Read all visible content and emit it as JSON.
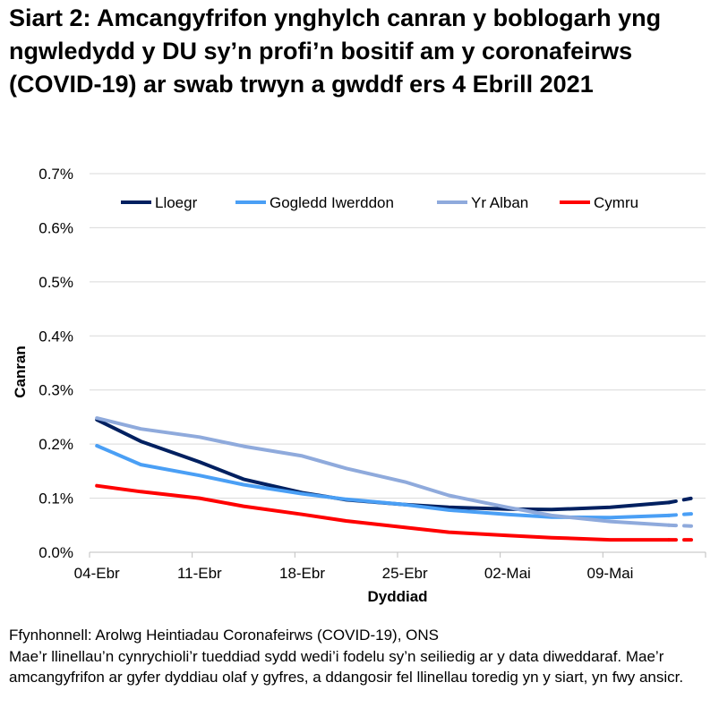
{
  "title": "Siart 2: Amcangyfrifon ynghylch canran y boblogarh yng ngwledydd y DU sy’n profi’n bositif am y coronafeirws (COVID-19) ar swab trwyn a gwddf ers 4 Ebrill 2021",
  "chart_data": {
    "type": "line",
    "title": "Siart 2: Amcangyfrifon ynghylch canran y boblogarh yng ngwledydd y DU sy’n profi’n bositif am y coronafeirws (COVID-19) ar swab trwyn a gwddf ers 4 Ebrill 2021",
    "xlabel": "Dyddiad",
    "ylabel": "Canran",
    "x_range": [
      "04-Ebr",
      "15-Mai"
    ],
    "x_ticks": [
      "04-Ebr",
      "11-Ebr",
      "18-Ebr",
      "25-Ebr",
      "02-Mai",
      "09-Mai"
    ],
    "ylim": [
      0,
      0.7
    ],
    "y_ticks": [
      "0.0%",
      "0.1%",
      "0.2%",
      "0.3%",
      "0.4%",
      "0.5%",
      "0.6%",
      "0.7%"
    ],
    "y_unit": "%",
    "grid": true,
    "legend": "top",
    "dashed_from": "13-Mai",
    "x": [
      "04-Ebr",
      "07-Ebr",
      "11-Ebr",
      "14-Ebr",
      "18-Ebr",
      "21-Ebr",
      "25-Ebr",
      "28-Ebr",
      "02-Mai",
      "05-Mai",
      "09-Mai",
      "13-Mai",
      "15-Mai"
    ],
    "series": [
      {
        "name": "Lloegr",
        "color": "#002060",
        "values": [
          0.245,
          0.205,
          0.167,
          0.135,
          0.11,
          0.097,
          0.088,
          0.083,
          0.08,
          0.079,
          0.083,
          0.092,
          0.102
        ]
      },
      {
        "name": "Gogledd Iwerddon",
        "color": "#4a9ff5",
        "values": [
          0.197,
          0.162,
          0.142,
          0.125,
          0.108,
          0.098,
          0.088,
          0.078,
          0.07,
          0.065,
          0.064,
          0.068,
          0.072
        ]
      },
      {
        "name": "Yr Alban",
        "color": "#8faadc",
        "values": [
          0.248,
          0.228,
          0.213,
          0.196,
          0.178,
          0.155,
          0.13,
          0.105,
          0.083,
          0.068,
          0.057,
          0.05,
          0.048
        ]
      },
      {
        "name": "Cymru",
        "color": "#ff0000",
        "values": [
          0.123,
          0.112,
          0.1,
          0.085,
          0.07,
          0.058,
          0.046,
          0.037,
          0.031,
          0.027,
          0.023,
          0.023,
          0.023
        ]
      }
    ]
  },
  "footer": {
    "source": "Ffynhonnell: Arolwg Heintiadau Coronafeirws (COVID-19), ONS",
    "note": "Mae’r llinellau’n cynrychioli’r tueddiad sydd wedi’i fodelu sy’n seiliedig ar y data diweddaraf. Mae’r amcangyfrifon ar gyfer dyddiau olaf y gyfres, a ddangosir fel llinellau toredig yn y siart, yn fwy ansicr."
  }
}
